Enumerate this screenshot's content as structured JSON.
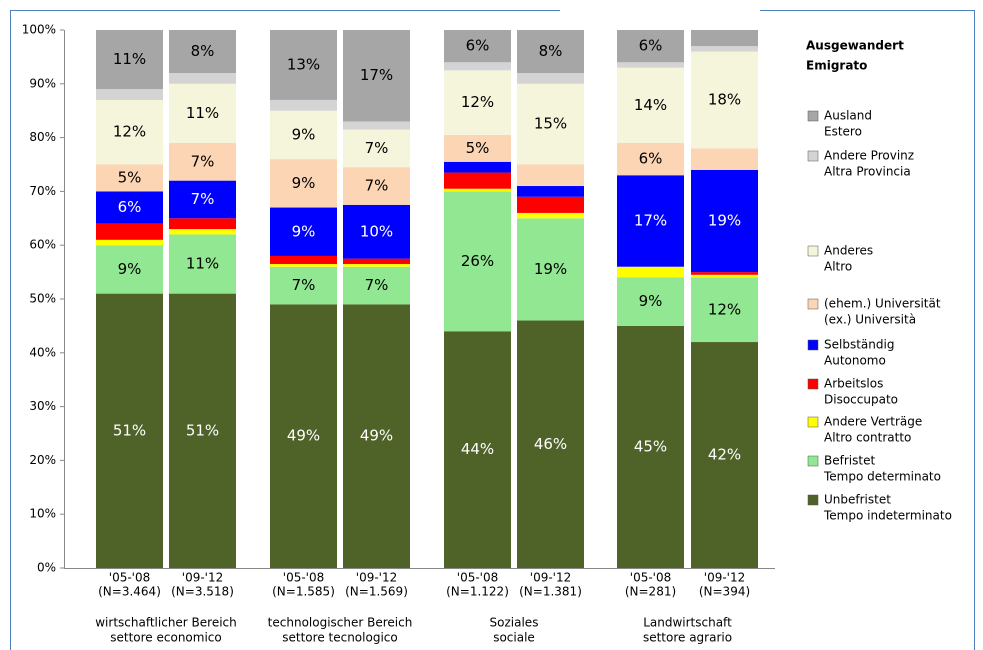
{
  "chart_data": {
    "type": "stacked_bar",
    "legend_title": [
      "Ausgewandert",
      "Emigrato"
    ],
    "categories": [
      [
        "'05-'08",
        "(N=3.464)"
      ],
      [
        "'09-'12",
        "(N=3.518)"
      ],
      [
        "'05-'08",
        "(N=1.585)"
      ],
      [
        "'09-'12",
        "(N=1.569)"
      ],
      [
        "'05-'08",
        "(N=1.122)"
      ],
      [
        "'09-'12",
        "(N=1.381)"
      ],
      [
        "'05-'08",
        "(N=281)"
      ],
      [
        "'09-'12",
        "(N=394)"
      ]
    ],
    "groups": [
      [
        "wirtschaftlicher Bereich",
        "settore economico"
      ],
      [
        "technologischer Bereich",
        "settore tecnologico"
      ],
      [
        "Soziales",
        "sociale"
      ],
      [
        "Landwirtschaft",
        "settore agrario"
      ]
    ],
    "ylim": [
      0,
      100
    ],
    "yticks": [
      {
        "value": 0,
        "label": "0%"
      },
      {
        "value": 10,
        "label": "10%"
      },
      {
        "value": 20,
        "label": "20%"
      },
      {
        "value": 30,
        "label": "30%"
      },
      {
        "value": 40,
        "label": "40%"
      },
      {
        "value": 50,
        "label": "50%"
      },
      {
        "value": 60,
        "label": "60%"
      },
      {
        "value": 70,
        "label": "70%"
      },
      {
        "value": 80,
        "label": "80%"
      },
      {
        "value": 90,
        "label": "90%"
      },
      {
        "value": 100,
        "label": "100%"
      }
    ],
    "series": [
      {
        "name": [
          "Unbefristet",
          "Tempo indeterminato"
        ],
        "color": "#4f6228",
        "values": [
          51,
          51,
          49,
          49,
          44,
          46,
          45,
          42
        ],
        "value_labels": [
          "51%",
          "51%",
          "49%",
          "49%",
          "44%",
          "46%",
          "45%",
          "42%"
        ]
      },
      {
        "name": [
          "Befristet",
          "Tempo determinato"
        ],
        "color": "#92e892",
        "values": [
          9,
          11,
          7,
          7,
          26,
          19,
          9,
          12
        ],
        "value_labels": [
          "9%",
          "11%",
          "7%",
          "7%",
          "26%",
          "19%",
          "9%",
          "12%"
        ]
      },
      {
        "name": [
          "Andere Verträge",
          "Altro contratto"
        ],
        "color": "#ffff00",
        "values": [
          1,
          1,
          0.5,
          0.5,
          0.5,
          1,
          2,
          0.5
        ]
      },
      {
        "name": [
          "Arbeitslos",
          "Disoccupato"
        ],
        "color": "#ff0000",
        "values": [
          3,
          2,
          1.5,
          1,
          3,
          3,
          0,
          0.5
        ]
      },
      {
        "name": [
          "Selbständig",
          "Autonomo"
        ],
        "color": "#0000ff",
        "values": [
          6,
          7,
          9,
          10,
          2,
          2,
          17,
          19
        ],
        "value_labels": [
          "6%",
          "7%",
          "9%",
          "10%",
          null,
          null,
          "17%",
          "19%"
        ]
      },
      {
        "name": [
          "(ehem.) Universität",
          "(ex.) Università"
        ],
        "color": "#fcd5b4",
        "values": [
          5,
          7,
          9,
          7,
          5,
          4,
          6,
          4
        ],
        "value_labels": [
          "5%",
          "7%",
          "9%",
          "7%",
          "5%",
          null,
          "6%",
          null
        ]
      },
      {
        "name": [
          "Anderes",
          "Altro"
        ],
        "color": "#f5f5dc",
        "values": [
          12,
          11,
          9,
          7,
          12,
          15,
          14,
          18
        ],
        "value_labels": [
          "12%",
          "11%",
          "9%",
          "7%",
          "12%",
          "15%",
          "14%",
          "18%"
        ]
      },
      {
        "name": [
          "Andere Provinz",
          "Altra Provincia"
        ],
        "color": "#d4d4d4",
        "values": [
          2,
          2,
          2,
          1.5,
          1.5,
          2,
          1,
          1
        ]
      },
      {
        "name": [
          "Ausland",
          "Estero"
        ],
        "color": "#a6a6a6",
        "values": [
          11,
          8,
          13,
          17,
          6,
          8,
          6,
          3
        ],
        "value_labels": [
          "11%",
          "8%",
          "13%",
          "17%",
          "6%",
          "8%",
          "6%",
          null
        ]
      }
    ]
  }
}
